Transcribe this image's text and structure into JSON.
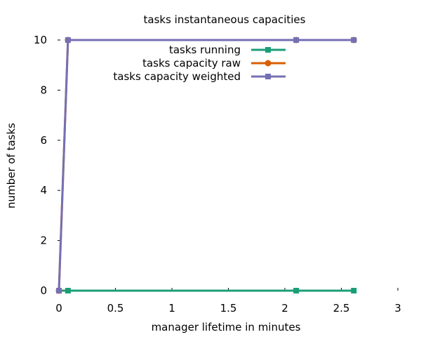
{
  "chart_data": {
    "type": "line",
    "title": "tasks instantaneous capacities",
    "xlabel": "manager lifetime in minutes",
    "ylabel": "number of tasks",
    "xlim": [
      0,
      3
    ],
    "ylim": [
      0,
      10
    ],
    "xticks": [
      0,
      0.5,
      1,
      1.5,
      2,
      2.5,
      3
    ],
    "xtick_labels": [
      "0",
      "0.5",
      "1",
      "1.5",
      "2",
      "2.5",
      "3"
    ],
    "yticks": [
      0,
      2,
      4,
      6,
      8,
      10
    ],
    "ytick_labels": [
      "0",
      "2",
      "4",
      "6",
      "8",
      "10"
    ],
    "grid": false,
    "legend_position": "top-right",
    "series": [
      {
        "name": "tasks running",
        "color": "#1b9e77",
        "marker": "square",
        "points": [
          [
            0.0,
            0
          ],
          [
            0.08,
            0
          ],
          [
            2.1,
            0
          ],
          [
            2.61,
            0
          ]
        ]
      },
      {
        "name": "tasks capacity raw",
        "color": "#d95f02",
        "marker": "circle",
        "points": [
          [
            0.0,
            0
          ],
          [
            0.08,
            10
          ],
          [
            2.1,
            10
          ],
          [
            2.61,
            10
          ]
        ]
      },
      {
        "name": "tasks capacity weighted",
        "color": "#7570b3",
        "marker": "square",
        "points": [
          [
            0.0,
            0
          ],
          [
            0.08,
            10
          ],
          [
            2.1,
            10
          ],
          [
            2.61,
            10
          ]
        ]
      }
    ]
  }
}
